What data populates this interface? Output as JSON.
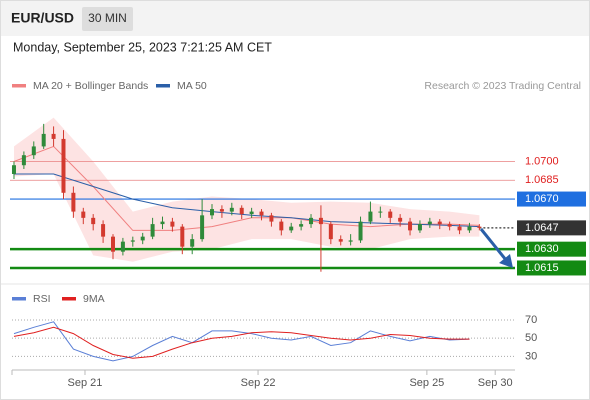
{
  "header": {
    "symbol": "EUR/USD",
    "timeframe": "30 MIN",
    "datetime": "Monday, September 25, 2023 7:21:25 AM CET",
    "credit": "Research © 2023 Trading Central"
  },
  "chart_data": [
    {
      "type": "candlestick",
      "x": [
        0,
        1,
        2,
        3,
        4,
        5,
        6,
        7,
        8,
        9,
        10,
        11,
        12,
        13,
        14,
        15,
        16,
        17,
        18,
        19,
        20,
        21,
        22,
        23,
        24,
        25,
        26,
        27,
        28,
        29,
        30,
        31,
        32,
        33,
        34,
        35,
        36,
        37,
        38,
        39,
        40,
        41,
        42,
        43,
        44,
        45,
        46,
        47
      ],
      "open": [
        1.069,
        1.0697,
        1.0705,
        1.0712,
        1.0722,
        1.0718,
        1.0675,
        1.066,
        1.0655,
        1.065,
        1.064,
        1.0628,
        1.0636,
        1.0637,
        1.064,
        1.065,
        1.0652,
        1.0648,
        1.0632,
        1.0638,
        1.0657,
        1.0662,
        1.066,
        1.0663,
        1.0658,
        1.066,
        1.0657,
        1.0652,
        1.0645,
        1.0648,
        1.065,
        1.0655,
        1.065,
        1.0638,
        1.0636,
        1.0637,
        1.0652,
        1.066,
        1.066,
        1.0655,
        1.0652,
        1.0645,
        1.065,
        1.0652,
        1.065,
        1.0648,
        1.0645,
        1.0648
      ],
      "high": [
        1.07,
        1.0708,
        1.0716,
        1.073,
        1.0728,
        1.0725,
        1.068,
        1.0663,
        1.0658,
        1.0653,
        1.0642,
        1.0639,
        1.064,
        1.0643,
        1.0655,
        1.0656,
        1.0655,
        1.065,
        1.0642,
        1.067,
        1.0666,
        1.0665,
        1.0667,
        1.0665,
        1.0663,
        1.0662,
        1.0659,
        1.0654,
        1.0651,
        1.0653,
        1.0658,
        1.0665,
        1.0652,
        1.0641,
        1.0642,
        1.0656,
        1.0668,
        1.0664,
        1.0662,
        1.0658,
        1.0655,
        1.0653,
        1.0655,
        1.0654,
        1.0652,
        1.065,
        1.0651,
        1.065
      ],
      "low": [
        1.0686,
        1.0694,
        1.0702,
        1.071,
        1.0712,
        1.067,
        1.0655,
        1.065,
        1.0645,
        1.0635,
        1.0622,
        1.0625,
        1.0632,
        1.0634,
        1.0638,
        1.0646,
        1.0644,
        1.0626,
        1.0626,
        1.0636,
        1.0654,
        1.0655,
        1.0657,
        1.0654,
        1.0655,
        1.0653,
        1.0648,
        1.0641,
        1.0643,
        1.0645,
        1.0647,
        1.0612,
        1.0634,
        1.0633,
        1.0633,
        1.0635,
        1.065,
        1.0655,
        1.0651,
        1.0648,
        1.0641,
        1.0643,
        1.0647,
        1.0646,
        1.0645,
        1.0642,
        1.0643,
        1.0645
      ],
      "close": [
        1.0697,
        1.0705,
        1.0712,
        1.0722,
        1.0718,
        1.0675,
        1.066,
        1.0655,
        1.065,
        1.064,
        1.0628,
        1.0636,
        1.0637,
        1.064,
        1.065,
        1.0652,
        1.0648,
        1.0632,
        1.0638,
        1.0657,
        1.0662,
        1.066,
        1.0663,
        1.0658,
        1.066,
        1.0657,
        1.0652,
        1.0645,
        1.0648,
        1.065,
        1.0655,
        1.065,
        1.0638,
        1.0636,
        1.0637,
        1.0652,
        1.066,
        1.066,
        1.0655,
        1.0652,
        1.0645,
        1.065,
        1.0652,
        1.065,
        1.0648,
        1.0645,
        1.0648,
        1.0647
      ],
      "up_color": "#2f8a3a",
      "down_color": "#d33a2f",
      "xlim": [
        -0.2,
        50.6
      ],
      "ylim": [
        1.0603,
        1.0773
      ],
      "overlays": {
        "x": [
          0,
          4,
          8,
          12,
          16,
          20,
          24,
          28,
          32,
          36,
          40,
          44,
          47
        ],
        "band_color": "#fde3e3",
        "series": [
          {
            "name": "MA 20 + Bollinger Bands",
            "color": "#f08080",
            "values": [
              1.07,
              1.0712,
              1.068,
              1.0645,
              1.0645,
              1.0648,
              1.0655,
              1.0655,
              1.065,
              1.0648,
              1.065,
              1.065,
              1.0649
            ],
            "upper": [
              1.0712,
              1.0735,
              1.07,
              1.066,
              1.0668,
              1.0672,
              1.067,
              1.0667,
              1.0668,
              1.0667,
              1.0662,
              1.066,
              1.0657
            ],
            "lower": [
              1.0688,
              1.069,
              1.0625,
              1.062,
              1.0628,
              1.063,
              1.0638,
              1.0638,
              1.0632,
              1.063,
              1.0638,
              1.064,
              1.064
            ]
          },
          {
            "name": "MA 50",
            "color": "#2a5fa8",
            "values": [
              1.069,
              1.069,
              1.068,
              1.067,
              1.0663,
              1.066,
              1.0657,
              1.0655,
              1.0652,
              1.0651,
              1.065,
              1.0649,
              1.0648
            ]
          }
        ]
      },
      "levels": [
        {
          "value": 1.07,
          "label": "1.0700",
          "color": "#e02020",
          "box": false
        },
        {
          "value": 1.0685,
          "label": "1.0685",
          "color": "#e02020",
          "box": false
        },
        {
          "value": 1.067,
          "label": "1.0670",
          "color": "#1f6fe0",
          "box": true
        },
        {
          "value": 1.0647,
          "label": "1.0647",
          "color": "#333333",
          "box": true
        },
        {
          "value": 1.063,
          "label": "1.0630",
          "color": "#138a13",
          "box": true
        },
        {
          "value": 1.0615,
          "label": "1.0615",
          "color": "#138a13",
          "box": true
        }
      ]
    },
    {
      "type": "line",
      "x": [
        0,
        2,
        4,
        6,
        8,
        10,
        12,
        14,
        16,
        18,
        20,
        22,
        24,
        26,
        28,
        30,
        32,
        34,
        36,
        38,
        40,
        42,
        44,
        46
      ],
      "series": [
        {
          "name": "RSI",
          "color": "#5a7fd6",
          "values": [
            55,
            62,
            68,
            38,
            30,
            25,
            30,
            42,
            52,
            45,
            58,
            58,
            55,
            50,
            48,
            52,
            42,
            45,
            58,
            52,
            47,
            52,
            48,
            49
          ]
        },
        {
          "name": "9MA",
          "color": "#e02020",
          "values": [
            52,
            56,
            62,
            55,
            42,
            32,
            28,
            30,
            38,
            45,
            50,
            52,
            56,
            57,
            56,
            53,
            50,
            48,
            50,
            54,
            53,
            50,
            49,
            49
          ]
        }
      ],
      "xlim": [
        -0.2,
        50.6
      ],
      "ylim": [
        15,
        92
      ],
      "yticks": [
        30,
        50,
        70
      ],
      "xticks": [
        {
          "value": 7.17,
          "label": "Sep 21"
        },
        {
          "value": 24.65,
          "label": "Sep 22"
        },
        {
          "value": 41.7,
          "label": "Sep 25"
        },
        {
          "value": 48.6,
          "label": "Sep 30"
        }
      ]
    }
  ]
}
